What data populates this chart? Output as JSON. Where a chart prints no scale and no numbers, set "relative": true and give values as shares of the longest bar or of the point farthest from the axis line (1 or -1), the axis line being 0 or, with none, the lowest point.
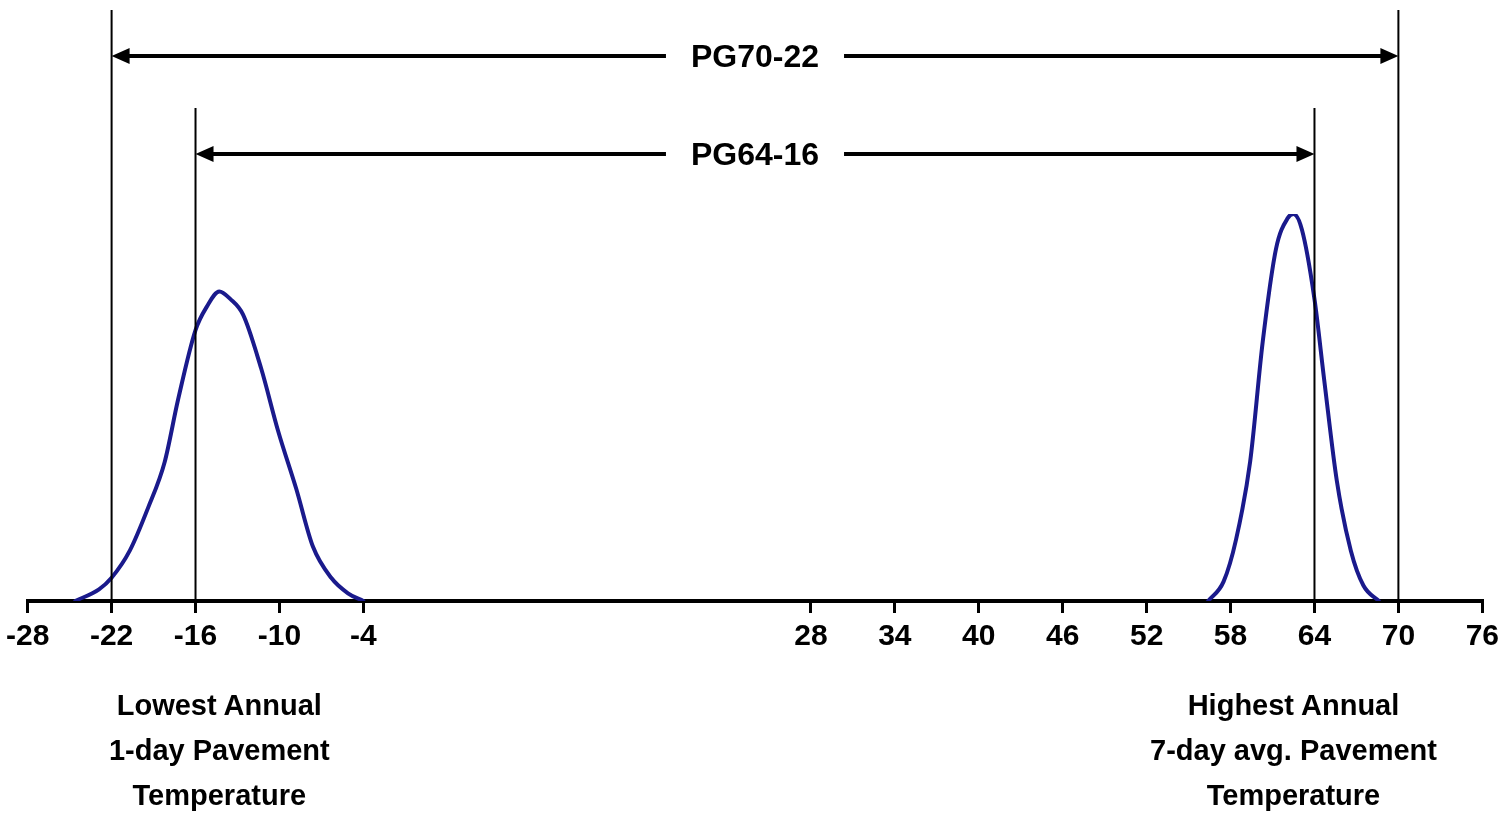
{
  "chart_data": {
    "type": "line",
    "relative": true,
    "xlim": [
      -28,
      76
    ],
    "xticks": [
      -28,
      -22,
      -16,
      -10,
      -4,
      28,
      34,
      40,
      46,
      52,
      58,
      64,
      70,
      76
    ],
    "series": [
      {
        "color": "#1a1a8c",
        "x": [
          -24.6,
          -22.9,
          -22,
          -20.7,
          -19.4,
          -18.2,
          -17.25,
          -16,
          -15.2,
          -14.3,
          -13.5,
          -12.6,
          -11.3,
          -10.1,
          -8.8,
          -7.6,
          -6.3,
          -5.1,
          -4
        ],
        "values": [
          0,
          0.03,
          0.06,
          0.13,
          0.24,
          0.36,
          0.52,
          0.7,
          0.76,
          0.8,
          0.78,
          0.74,
          0.6,
          0.44,
          0.29,
          0.14,
          0.06,
          0.02,
          0
        ]
      },
      {
        "color": "#1a1a8c",
        "x": [
          56.4,
          57.5,
          58.4,
          59.4,
          60.3,
          61.25,
          62.1,
          62.5,
          63.1,
          64,
          64.7,
          65.6,
          66.6,
          67.5,
          68.6
        ],
        "values": [
          0,
          0.05,
          0.16,
          0.36,
          0.67,
          0.91,
          0.99,
          1,
          0.96,
          0.78,
          0.57,
          0.31,
          0.13,
          0.04,
          0
        ]
      }
    ],
    "ref_lines": [
      {
        "axis": "x",
        "value": -22,
        "color": "#000000"
      },
      {
        "axis": "x",
        "value": -16,
        "color": "#000000"
      },
      {
        "axis": "x",
        "value": 64,
        "color": "#000000"
      },
      {
        "axis": "x",
        "value": 70,
        "color": "#000000"
      }
    ],
    "annotations": [
      "PG70-22",
      "PG64-16",
      "Lowest Annual\n1-day Pavement\nTemperature",
      "Highest Annual\n7-day avg. Pavement\nTemperature"
    ],
    "legend": false,
    "grid": false,
    "marker": "none",
    "line_style": "solid"
  }
}
